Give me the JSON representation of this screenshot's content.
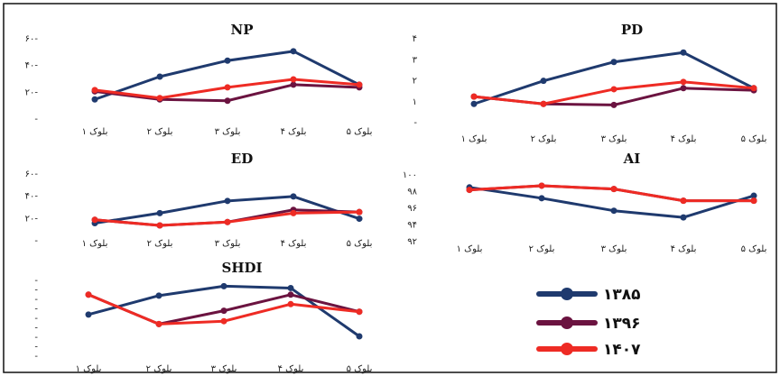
{
  "colors": {
    "s1385": "#1f3a6e",
    "s1396": "#6b1340",
    "s1407": "#ee2b24"
  },
  "legend": [
    {
      "name": "۱۳۸۵",
      "color": "#1f3a6e"
    },
    {
      "name": "۱۳۹۶",
      "color": "#6b1340"
    },
    {
      "name": "۱۴۰۷",
      "color": "#ee2b24"
    }
  ],
  "chart_data": [
    {
      "type": "line",
      "title": "NP",
      "categories": [
        "بلوک ۱",
        "بلوک ۲",
        "بلوک ۳",
        "بلوک ۴",
        "بلوک ۵"
      ],
      "ylim": [
        0,
        60
      ],
      "yticks": [
        0,
        20,
        40,
        60
      ],
      "ytick_labels": [
        "-",
        "۲۰-",
        "۴۰-",
        "۶۰-"
      ],
      "series": [
        {
          "name": "۱۳۸۵",
          "values": [
            14,
            31,
            43,
            50,
            25
          ]
        },
        {
          "name": "۱۳۹۶",
          "values": [
            20,
            14,
            13,
            25,
            23
          ]
        },
        {
          "name": "۱۴۰۷",
          "values": [
            21,
            15,
            23,
            29,
            25
          ]
        }
      ]
    },
    {
      "type": "line",
      "title": "PD",
      "categories": [
        "بلوک ۱",
        "بلوک ۲",
        "بلوک ۳",
        "بلوک ۴",
        "بلوک ۵"
      ],
      "ylim": [
        0,
        4
      ],
      "yticks": [
        0,
        1,
        2,
        3,
        4
      ],
      "ytick_labels": [
        "-",
        "۱",
        "۲",
        "۳",
        "۴"
      ],
      "series": [
        {
          "name": "۱۳۸۵",
          "values": [
            0.85,
            1.95,
            2.85,
            3.3,
            1.6
          ]
        },
        {
          "name": "۱۳۹۶",
          "values": [
            1.2,
            0.85,
            0.8,
            1.6,
            1.5
          ]
        },
        {
          "name": "۱۴۰۷",
          "values": [
            1.2,
            0.85,
            1.55,
            1.9,
            1.6
          ]
        }
      ]
    },
    {
      "type": "line",
      "title": "ED",
      "categories": [
        "بلوک ۱",
        "بلوک ۲",
        "بلوک ۳",
        "بلوک ۴",
        "بلوک ۵"
      ],
      "ylim": [
        0,
        60
      ],
      "yticks": [
        0,
        20,
        40,
        60
      ],
      "ytick_labels": [
        "-",
        "۲۰-",
        "۴۰-",
        "۶۰-"
      ],
      "series": [
        {
          "name": "۱۳۸۵",
          "values": [
            15,
            24,
            35,
            39,
            19
          ]
        },
        {
          "name": "۱۳۹۶",
          "values": [
            18,
            13,
            16,
            27,
            25
          ]
        },
        {
          "name": "۱۴۰۷",
          "values": [
            18,
            13,
            16,
            24,
            25
          ]
        }
      ]
    },
    {
      "type": "line",
      "title": "AI",
      "categories": [
        "بلوک ۱",
        "بلوک ۲",
        "بلوک ۳",
        "بلوک ۴",
        "بلوک ۵"
      ],
      "ylim": [
        92,
        100
      ],
      "yticks": [
        92,
        94,
        96,
        98,
        100
      ],
      "ytick_labels": [
        "۹۲",
        "۹۴",
        "۹۶",
        "۹۸",
        "۱۰۰"
      ],
      "series": [
        {
          "name": "۱۳۸۵",
          "values": [
            98.4,
            97.1,
            95.6,
            94.8,
            97.4
          ]
        },
        {
          "name": "۱۳۹۶",
          "values": [
            98.1,
            98.6,
            98.2,
            96.8,
            96.8
          ]
        },
        {
          "name": "۱۴۰۷",
          "values": [
            98.1,
            98.6,
            98.2,
            96.8,
            96.8
          ]
        }
      ]
    },
    {
      "type": "line",
      "title": "SHDI",
      "categories": [
        "بلوک ۱",
        "بلوک ۲",
        "بلوک ۳",
        "بلوک ۴",
        "بلوک ۵"
      ],
      "ylim": [
        0,
        8
      ],
      "yticks": [
        0,
        1,
        2,
        3,
        4,
        5,
        6,
        7,
        8
      ],
      "ytick_labels": [
        "-",
        "-",
        "-",
        "-",
        "-",
        "-",
        "-",
        "-",
        "-"
      ],
      "series": [
        {
          "name": "۱۳۸۵",
          "values": [
            4.3,
            6.3,
            7.3,
            7.1,
            2.0
          ]
        },
        {
          "name": "۱۳۹۶",
          "values": [
            6.4,
            3.3,
            4.7,
            6.4,
            4.6
          ]
        },
        {
          "name": "۱۴۰۷",
          "values": [
            6.4,
            3.3,
            3.6,
            5.4,
            4.6
          ]
        }
      ]
    }
  ]
}
